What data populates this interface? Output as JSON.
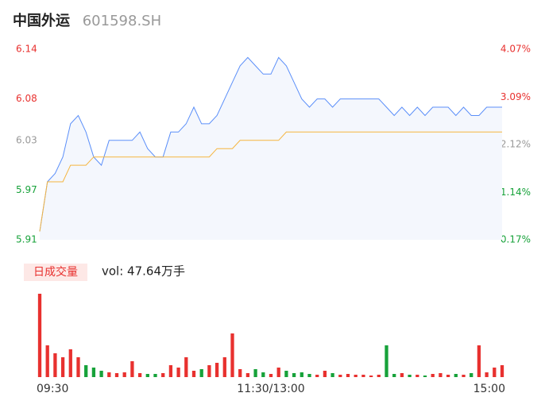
{
  "header": {
    "name": "中国外运",
    "code": "601598.SH"
  },
  "chart_data": {
    "type": "line",
    "xlim": [
      0,
      240
    ],
    "xticks": [
      {
        "value": 0,
        "label": "09:30"
      },
      {
        "value": 120,
        "label": "11:30/13:00"
      },
      {
        "value": 240,
        "label": "15:00"
      }
    ],
    "x": [
      0,
      4,
      8,
      12,
      16,
      20,
      24,
      28,
      32,
      36,
      40,
      44,
      48,
      52,
      56,
      60,
      64,
      68,
      72,
      76,
      80,
      84,
      88,
      92,
      96,
      100,
      104,
      108,
      112,
      116,
      120,
      124,
      128,
      132,
      136,
      140,
      144,
      148,
      152,
      156,
      160,
      164,
      168,
      172,
      176,
      180,
      184,
      188,
      192,
      196,
      200,
      204,
      208,
      212,
      216,
      220,
      224,
      228,
      232,
      236,
      240
    ],
    "ylim": [
      5.91,
      6.14
    ],
    "yticks": [
      6.14,
      6.08,
      6.03,
      5.97,
      5.91
    ],
    "ytick_colors": [
      "#e8312f",
      "#e8312f",
      "#999999",
      "#17a23a",
      "#17a23a"
    ],
    "y2lim": [
      0.17,
      4.07
    ],
    "y2ticks": [
      {
        "value": 4.07,
        "label": "4.07%"
      },
      {
        "value": 3.09,
        "label": "3.09%"
      },
      {
        "value": 2.12,
        "label": "2.12%"
      },
      {
        "value": 1.14,
        "label": "1.14%"
      },
      {
        "value": 0.17,
        "label": "0.17%"
      }
    ],
    "y2tick_colors": [
      "#e8312f",
      "#e8312f",
      "#999999",
      "#17a23a",
      "#17a23a"
    ],
    "series": [
      {
        "name": "price",
        "color": "#5b8ff9",
        "values": [
          5.92,
          5.98,
          5.99,
          6.01,
          6.05,
          6.06,
          6.04,
          6.01,
          6.0,
          6.03,
          6.03,
          6.03,
          6.03,
          6.04,
          6.02,
          6.01,
          6.01,
          6.04,
          6.04,
          6.05,
          6.07,
          6.05,
          6.05,
          6.06,
          6.08,
          6.1,
          6.12,
          6.13,
          6.12,
          6.11,
          6.11,
          6.13,
          6.12,
          6.1,
          6.08,
          6.07,
          6.08,
          6.08,
          6.07,
          6.08,
          6.08,
          6.08,
          6.08,
          6.08,
          6.08,
          6.07,
          6.06,
          6.07,
          6.06,
          6.07,
          6.06,
          6.07,
          6.07,
          6.07,
          6.06,
          6.07,
          6.06,
          6.06,
          6.07,
          6.07,
          6.07
        ]
      },
      {
        "name": "average",
        "color": "#f5b53f",
        "values": [
          5.92,
          5.98,
          5.98,
          5.98,
          6.0,
          6.0,
          6.0,
          6.01,
          6.01,
          6.01,
          6.01,
          6.01,
          6.01,
          6.01,
          6.01,
          6.01,
          6.01,
          6.01,
          6.01,
          6.01,
          6.01,
          6.01,
          6.01,
          6.02,
          6.02,
          6.02,
          6.03,
          6.03,
          6.03,
          6.03,
          6.03,
          6.03,
          6.04,
          6.04,
          6.04,
          6.04,
          6.04,
          6.04,
          6.04,
          6.04,
          6.04,
          6.04,
          6.04,
          6.04,
          6.04,
          6.04,
          6.04,
          6.04,
          6.04,
          6.04,
          6.04,
          6.04,
          6.04,
          6.04,
          6.04,
          6.04,
          6.04,
          6.04,
          6.04,
          6.04,
          6.04
        ]
      }
    ],
    "volume": {
      "label": "日成交量",
      "total": "vol: 47.64万手",
      "up_color": "#e8312f",
      "down_color": "#17a23a",
      "ylim": [
        0,
        105
      ],
      "values": [
        105,
        40,
        30,
        25,
        35,
        25,
        15,
        12,
        8,
        6,
        5,
        6,
        20,
        5,
        4,
        4,
        5,
        15,
        12,
        25,
        8,
        10,
        15,
        18,
        25,
        55,
        10,
        5,
        10,
        6,
        4,
        12,
        8,
        5,
        6,
        4,
        3,
        8,
        5,
        3,
        4,
        3,
        3,
        2,
        3,
        40,
        4,
        5,
        3,
        3,
        2,
        4,
        5,
        3,
        4,
        3,
        5,
        40,
        6,
        12,
        15
      ]
    }
  }
}
